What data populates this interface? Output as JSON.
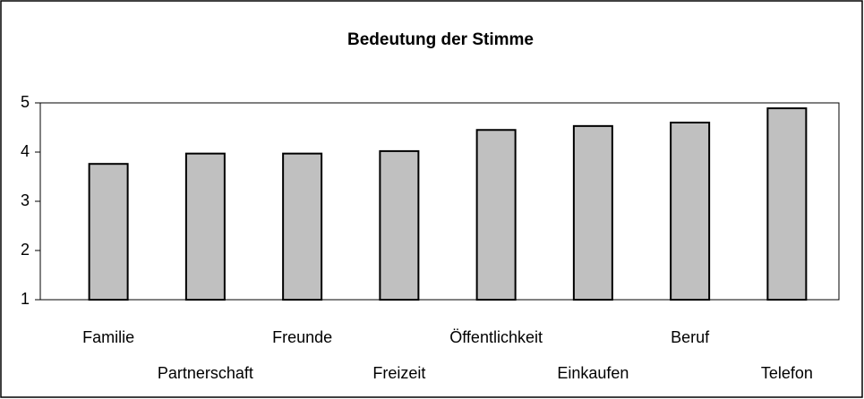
{
  "chart_data": {
    "type": "bar",
    "title": "Bedeutung der Stimme",
    "categories": [
      "Familie",
      "Partnerschaft",
      "Freunde",
      "Freizeit",
      "Öffentlichkeit",
      "Einkaufen",
      "Beruf",
      "Telefon"
    ],
    "values": [
      3.76,
      3.97,
      3.97,
      4.02,
      4.45,
      4.53,
      4.6,
      4.89
    ],
    "color": "#c0c0c0",
    "ylim": [
      1,
      5
    ],
    "yticks": [
      1,
      2,
      3,
      4,
      5
    ],
    "grid": false
  }
}
